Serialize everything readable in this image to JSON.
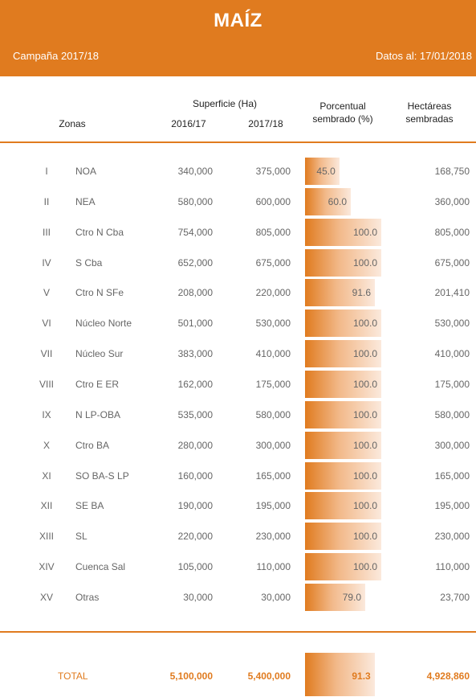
{
  "header": {
    "title": "MAÍZ",
    "campaign": "Campaña 2017/18",
    "date": "Datos al: 17/01/2018"
  },
  "columns": {
    "zonas": "Zonas",
    "superficie": "Superficie (Ha)",
    "y1": "2016/17",
    "y2": "2017/18",
    "pct_line1": "Porcentual",
    "pct_line2": "sembrado (%)",
    "hect_line1": "Hectáreas",
    "hect_line2": "sembradas"
  },
  "chart_data": {
    "type": "table",
    "title": "MAÍZ",
    "rows": [
      {
        "num": "I",
        "zone": "NOA",
        "sup_2016": "340,000",
        "sup_2017": "375,000",
        "pct": 45.0,
        "pct_label": "45.0",
        "hect": "168,750"
      },
      {
        "num": "II",
        "zone": "NEA",
        "sup_2016": "580,000",
        "sup_2017": "600,000",
        "pct": 60.0,
        "pct_label": "60.0",
        "hect": "360,000"
      },
      {
        "num": "III",
        "zone": "Ctro N Cba",
        "sup_2016": "754,000",
        "sup_2017": "805,000",
        "pct": 100.0,
        "pct_label": "100.0",
        "hect": "805,000"
      },
      {
        "num": "IV",
        "zone": "S Cba",
        "sup_2016": "652,000",
        "sup_2017": "675,000",
        "pct": 100.0,
        "pct_label": "100.0",
        "hect": "675,000"
      },
      {
        "num": "V",
        "zone": "Ctro N SFe",
        "sup_2016": "208,000",
        "sup_2017": "220,000",
        "pct": 91.6,
        "pct_label": "91.6",
        "hect": "201,410"
      },
      {
        "num": "VI",
        "zone": "Núcleo Norte",
        "sup_2016": "501,000",
        "sup_2017": "530,000",
        "pct": 100.0,
        "pct_label": "100.0",
        "hect": "530,000"
      },
      {
        "num": "VII",
        "zone": "Núcleo Sur",
        "sup_2016": "383,000",
        "sup_2017": "410,000",
        "pct": 100.0,
        "pct_label": "100.0",
        "hect": "410,000"
      },
      {
        "num": "VIII",
        "zone": "Ctro E ER",
        "sup_2016": "162,000",
        "sup_2017": "175,000",
        "pct": 100.0,
        "pct_label": "100.0",
        "hect": "175,000"
      },
      {
        "num": "IX",
        "zone": "N LP-OBA",
        "sup_2016": "535,000",
        "sup_2017": "580,000",
        "pct": 100.0,
        "pct_label": "100.0",
        "hect": "580,000"
      },
      {
        "num": "X",
        "zone": "Ctro BA",
        "sup_2016": "280,000",
        "sup_2017": "300,000",
        "pct": 100.0,
        "pct_label": "100.0",
        "hect": "300,000"
      },
      {
        "num": "XI",
        "zone": "SO BA-S LP",
        "sup_2016": "160,000",
        "sup_2017": "165,000",
        "pct": 100.0,
        "pct_label": "100.0",
        "hect": "165,000"
      },
      {
        "num": "XII",
        "zone": "SE BA",
        "sup_2016": "190,000",
        "sup_2017": "195,000",
        "pct": 100.0,
        "pct_label": "100.0",
        "hect": "195,000"
      },
      {
        "num": "XIII",
        "zone": "SL",
        "sup_2016": "220,000",
        "sup_2017": "230,000",
        "pct": 100.0,
        "pct_label": "100.0",
        "hect": "230,000"
      },
      {
        "num": "XIV",
        "zone": "Cuenca Sal",
        "sup_2016": "105,000",
        "sup_2017": "110,000",
        "pct": 100.0,
        "pct_label": "100.0",
        "hect": "110,000"
      },
      {
        "num": "XV",
        "zone": "Otras",
        "sup_2016": "30,000",
        "sup_2017": "30,000",
        "pct": 79.0,
        "pct_label": "79.0",
        "hect": "23,700"
      }
    ],
    "total": {
      "label": "TOTAL",
      "sup_2016": "5,100,000",
      "sup_2017": "5,400,000",
      "pct": 91.3,
      "pct_label": "91.3",
      "hect": "4,928,860"
    }
  },
  "colors": {
    "accent": "#e07b1f"
  }
}
